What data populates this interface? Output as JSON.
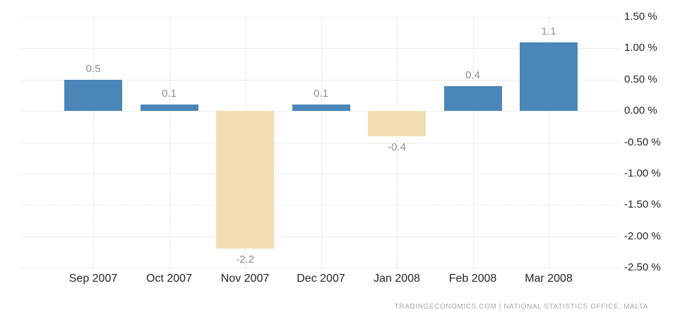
{
  "chart": {
    "attribution": "TRADINGECONOMICS.COM  |  NATIONAL STATISTICS OFFICE, MALTA"
  },
  "chart_data": {
    "type": "bar",
    "categories": [
      "Sep 2007",
      "Oct 2007",
      "Nov 2007",
      "Dec 2007",
      "Jan 2008",
      "Feb 2008",
      "Mar 2008"
    ],
    "values": [
      0.5,
      0.1,
      -2.2,
      0.1,
      -0.4,
      0.4,
      1.1
    ],
    "value_labels": [
      "0.5",
      "0.1",
      "-2.2",
      "0.1",
      "-0.4",
      "0.4",
      "1.1"
    ],
    "title": "",
    "xlabel": "",
    "ylabel": "",
    "ylim": [
      -2.5,
      1.5
    ],
    "ytick_step": 0.5,
    "ytick_labels": [
      "1.50 %",
      "1.00 %",
      "0.50 %",
      "0.00 %",
      "-0.50 %",
      "-1.00 %",
      "-1.50 %",
      "-2.00 %",
      "-2.50 %"
    ],
    "grid": true,
    "legend": false,
    "yaxis_position": "right",
    "colors": {
      "positive_bar": "#4a87b8",
      "negative_bar": "#f2deb2",
      "gridline": "#dcdcdc",
      "value_label": "#8e8e8e",
      "axis_label": "#252525",
      "attribution": "#a8a8a8",
      "background": "#ffffff"
    }
  }
}
